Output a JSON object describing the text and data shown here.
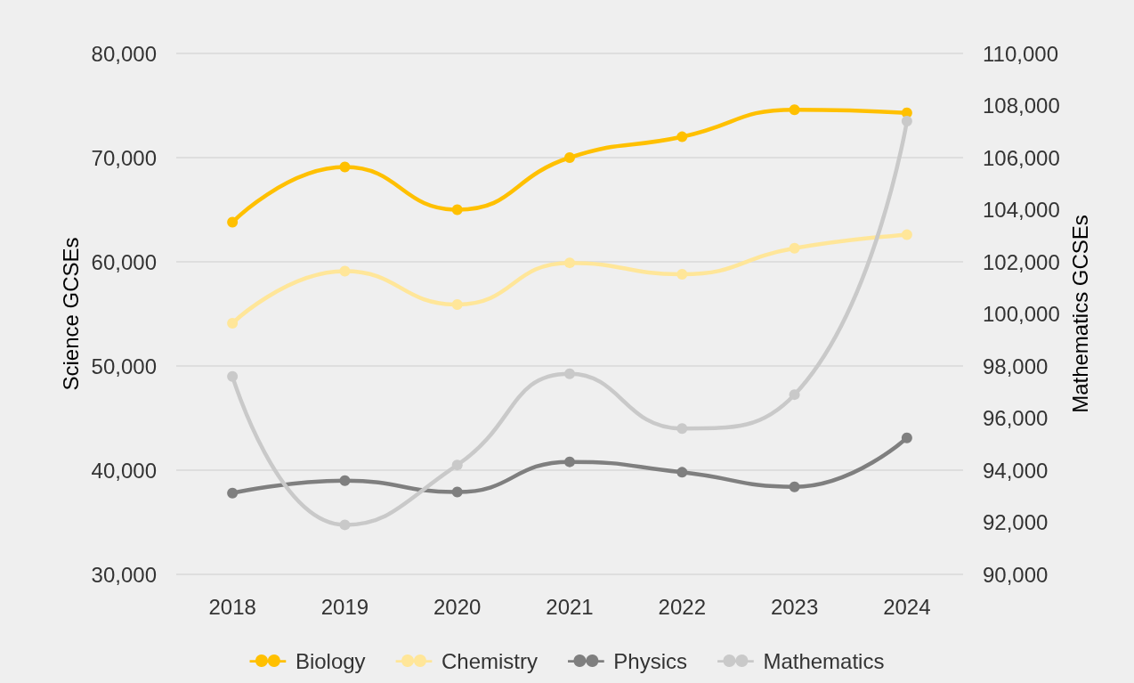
{
  "chart_data": {
    "type": "line",
    "ylabel": "Science GCSEs",
    "y2label": "Mathematics GCSEs",
    "categories": [
      "2018",
      "2019",
      "2020",
      "2021",
      "2022",
      "2023",
      "2024"
    ],
    "series": [
      {
        "name": "Biology",
        "color": "#ffc000",
        "values": [
          63800,
          69100,
          65000,
          70000,
          72000,
          74600,
          74300
        ]
      },
      {
        "name": "Chemistry",
        "color": "#ffe699",
        "values": [
          54100,
          59100,
          55900,
          59900,
          58800,
          61300,
          62600
        ]
      },
      {
        "name": "Physics",
        "color": "#7f7f7f",
        "values": [
          37800,
          39000,
          37900,
          40800,
          39800,
          38400,
          43100
        ]
      },
      {
        "name": "Mathematics",
        "color": "#c9c9c9",
        "axis": "y2",
        "values": [
          97600,
          91900,
          94200,
          97700,
          95600,
          96900,
          107400
        ]
      }
    ],
    "ylim": [
      30000,
      80000
    ],
    "yticks": [
      {
        "value": 30000,
        "label": "30,000"
      },
      {
        "value": 40000,
        "label": "40,000"
      },
      {
        "value": 50000,
        "label": "50,000"
      },
      {
        "value": 60000,
        "label": "60,000"
      },
      {
        "value": 70000,
        "label": "70,000"
      },
      {
        "value": 80000,
        "label": "80,000"
      }
    ],
    "y2lim": [
      90000,
      110000
    ],
    "y2ticks": [
      {
        "value": 90000,
        "label": "90,000"
      },
      {
        "value": 92000,
        "label": "92,000"
      },
      {
        "value": 94000,
        "label": "94,000"
      },
      {
        "value": 96000,
        "label": "96,000"
      },
      {
        "value": 98000,
        "label": "98,000"
      },
      {
        "value": 100000,
        "label": "100,000"
      },
      {
        "value": 102000,
        "label": "102,000"
      },
      {
        "value": 104000,
        "label": "104,000"
      },
      {
        "value": 106000,
        "label": "106,000"
      },
      {
        "value": 108000,
        "label": "108,000"
      },
      {
        "value": 110000,
        "label": "110,000"
      }
    ],
    "grid": "y",
    "legend": "bottom",
    "marker": "circle",
    "line_style": "solid"
  }
}
